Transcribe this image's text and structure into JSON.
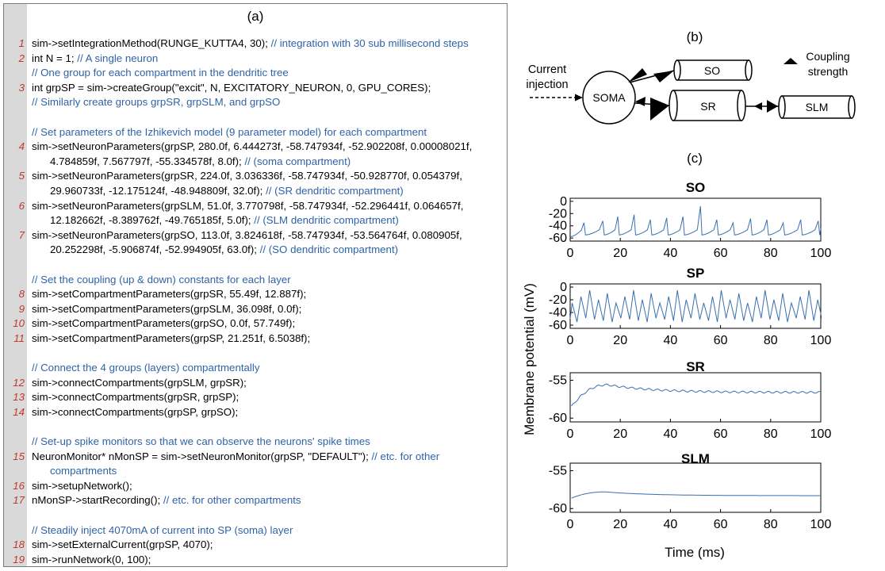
{
  "panel_a": {
    "label": "(a)",
    "lines": [
      {
        "n": "1",
        "code": "sim->setIntegrationMethod(RUNGE_KUTTA4, 30); ",
        "comment": "// integration with 30 sub millisecond steps"
      },
      {
        "n": "2",
        "code": "int N = 1; ",
        "comment": "// A single neuron"
      },
      {
        "n": "",
        "code": "",
        "comment": "// One group for each compartment in the dendritic tree"
      },
      {
        "n": "3",
        "code": "int grpSP = sim->createGroup(\"excit\", N, EXCITATORY_NEURON, 0, GPU_CORES);",
        "comment": ""
      },
      {
        "n": "",
        "code": "",
        "comment": "// Similarly create groups grpSR, grpSLM, and grpSO"
      },
      {
        "n": "",
        "code": "",
        "comment": ""
      },
      {
        "n": "",
        "code": "",
        "comment": "// Set parameters of the Izhikevich model (9 parameter model) for each compartment"
      },
      {
        "n": "4",
        "code": "sim->setNeuronParameters(grpSP, 280.0f, 6.444273f, -58.747934f, -52.902208f, 0.00008021f,",
        "comment": ""
      },
      {
        "n": "",
        "cont": true,
        "code": "4.784859f, 7.567797f, -55.334578f, 8.0f); ",
        "comment": "// (soma compartment)"
      },
      {
        "n": "5",
        "code": "sim->setNeuronParameters(grpSR, 224.0f, 3.036336f, -58.747934f, -50.928770f, 0.054379f,",
        "comment": ""
      },
      {
        "n": "",
        "cont": true,
        "code": "29.960733f, -12.175124f, -48.948809f, 32.0f); ",
        "comment": "// (SR dendritic compartment)"
      },
      {
        "n": "6",
        "code": "sim->setNeuronParameters(grpSLM, 51.0f, 3.770798f, -58.747934f, -52.296441f, 0.064657f,",
        "comment": ""
      },
      {
        "n": "",
        "cont": true,
        "code": "12.182662f, -8.389762f, -49.765185f, 5.0f); ",
        "comment": "// (SLM dendritic compartment)"
      },
      {
        "n": "7",
        "code": "sim->setNeuronParameters(grpSO, 113.0f, 3.824618f, -58.747934f, -53.564764f, 0.080905f,",
        "comment": ""
      },
      {
        "n": "",
        "cont": true,
        "code": "20.252298f, -5.906874f, -52.994905f, 63.0f); ",
        "comment": "// (SO dendritic compartment)"
      },
      {
        "n": "",
        "code": "",
        "comment": ""
      },
      {
        "n": "",
        "code": "",
        "comment": "// Set the coupling (up & down) constants for each layer"
      },
      {
        "n": "8",
        "code": "sim->setCompartmentParameters(grpSR, 55.49f, 12.887f);",
        "comment": ""
      },
      {
        "n": "9",
        "code": "sim->setCompartmentParameters(grpSLM, 36.098f, 0.0f);",
        "comment": ""
      },
      {
        "n": "10",
        "code": "sim->setCompartmentParameters(grpSO, 0.0f, 57.749f);",
        "comment": ""
      },
      {
        "n": "11",
        "code": "sim->setCompartmentParameters(grpSP, 21.251f, 6.5038f);",
        "comment": ""
      },
      {
        "n": "",
        "code": "",
        "comment": ""
      },
      {
        "n": "",
        "code": "",
        "comment": "// Connect the 4 groups (layers) compartmentally"
      },
      {
        "n": "12",
        "code": "sim->connectCompartments(grpSLM, grpSR);",
        "comment": ""
      },
      {
        "n": "13",
        "code": "sim->connectCompartments(grpSR, grpSP);",
        "comment": ""
      },
      {
        "n": "14",
        "code": "sim->connectCompartments(grpSP, grpSO);",
        "comment": ""
      },
      {
        "n": "",
        "code": "",
        "comment": ""
      },
      {
        "n": "",
        "code": "",
        "comment": "// Set-up spike monitors so that we can observe the neurons' spike times"
      },
      {
        "n": "15",
        "code": "NeuronMonitor* nMonSP = sim->setNeuronMonitor(grpSP, \"DEFAULT\"); ",
        "comment": "// etc. for other"
      },
      {
        "n": "",
        "cont": true,
        "code": "",
        "comment": "compartments"
      },
      {
        "n": "16",
        "code": "sim->setupNetwork();",
        "comment": ""
      },
      {
        "n": "17",
        "code": "nMonSP->startRecording(); ",
        "comment": "// etc. for other compartments"
      },
      {
        "n": "",
        "code": "",
        "comment": ""
      },
      {
        "n": "",
        "code": "",
        "comment": "// Steadily inject 4070mA of current into SP (soma) layer"
      },
      {
        "n": "18",
        "code": "sim->setExternalCurrent(grpSP, 4070);",
        "comment": ""
      },
      {
        "n": "19",
        "code": "sim->runNetwork(0, 100);",
        "comment": ""
      }
    ]
  },
  "panel_b": {
    "label": "(b)",
    "current_injection": [
      "Current",
      "injection"
    ],
    "soma": "SOMA",
    "so": "SO",
    "sr": "SR",
    "slm": "SLM",
    "coupling_strength": [
      "Coupling",
      "strength"
    ]
  },
  "panel_c": {
    "label": "(c)",
    "ylabel": "Membrane potential (mV)",
    "xlabel": "Time (ms)",
    "line_color": "#3a6fb0"
  },
  "chart_data": [
    {
      "type": "line",
      "title": "SO",
      "xlabel": "Time (ms)",
      "ylabel": "Membrane potential (mV)",
      "xlim": [
        0,
        100
      ],
      "ylim": [
        -65,
        5
      ],
      "xticks": [
        0,
        20,
        40,
        60,
        80,
        100
      ],
      "yticks": [
        0,
        -20,
        -40,
        -60
      ],
      "spikes": [
        5.5,
        13,
        19,
        25.5,
        32,
        38.5,
        45,
        52,
        58.5,
        65,
        72,
        78.5,
        85,
        92,
        99
      ],
      "spike_peaks": [
        -35,
        -32,
        -25,
        -22,
        -30,
        -27,
        -25,
        -8,
        -30,
        -35,
        -28,
        -30,
        -35,
        -30,
        -32
      ],
      "rest": -58,
      "reset": -55
    },
    {
      "type": "line",
      "title": "SP",
      "xlabel": "Time (ms)",
      "ylabel": "Membrane potential (mV)",
      "xlim": [
        0,
        100
      ],
      "ylim": [
        -65,
        5
      ],
      "xticks": [
        0,
        20,
        40,
        60,
        80,
        100
      ],
      "yticks": [
        0,
        -20,
        -40,
        -60
      ],
      "period_ms": 3.5,
      "peak_range": [
        -25,
        -5
      ],
      "trough": -55
    },
    {
      "type": "line",
      "title": "SR",
      "xlabel": "Time (ms)",
      "ylabel": "Membrane potential (mV)",
      "xlim": [
        0,
        100
      ],
      "ylim": [
        -60.5,
        -54
      ],
      "xticks": [
        0,
        20,
        40,
        60,
        80,
        100
      ],
      "yticks": [
        -55,
        -60
      ],
      "start": -58.7,
      "peak": -55.6,
      "peak_time": 15,
      "steady": -56.6
    },
    {
      "type": "line",
      "title": "SLM",
      "xlabel": "Time (ms)",
      "ylabel": "Membrane potential (mV)",
      "xlim": [
        0,
        100
      ],
      "ylim": [
        -60.5,
        -54
      ],
      "xticks": [
        0,
        20,
        40,
        60,
        80,
        100
      ],
      "yticks": [
        -55,
        -60
      ],
      "start": -58.7,
      "peak": -57.8,
      "peak_time": 14,
      "steady": -58.3
    }
  ]
}
